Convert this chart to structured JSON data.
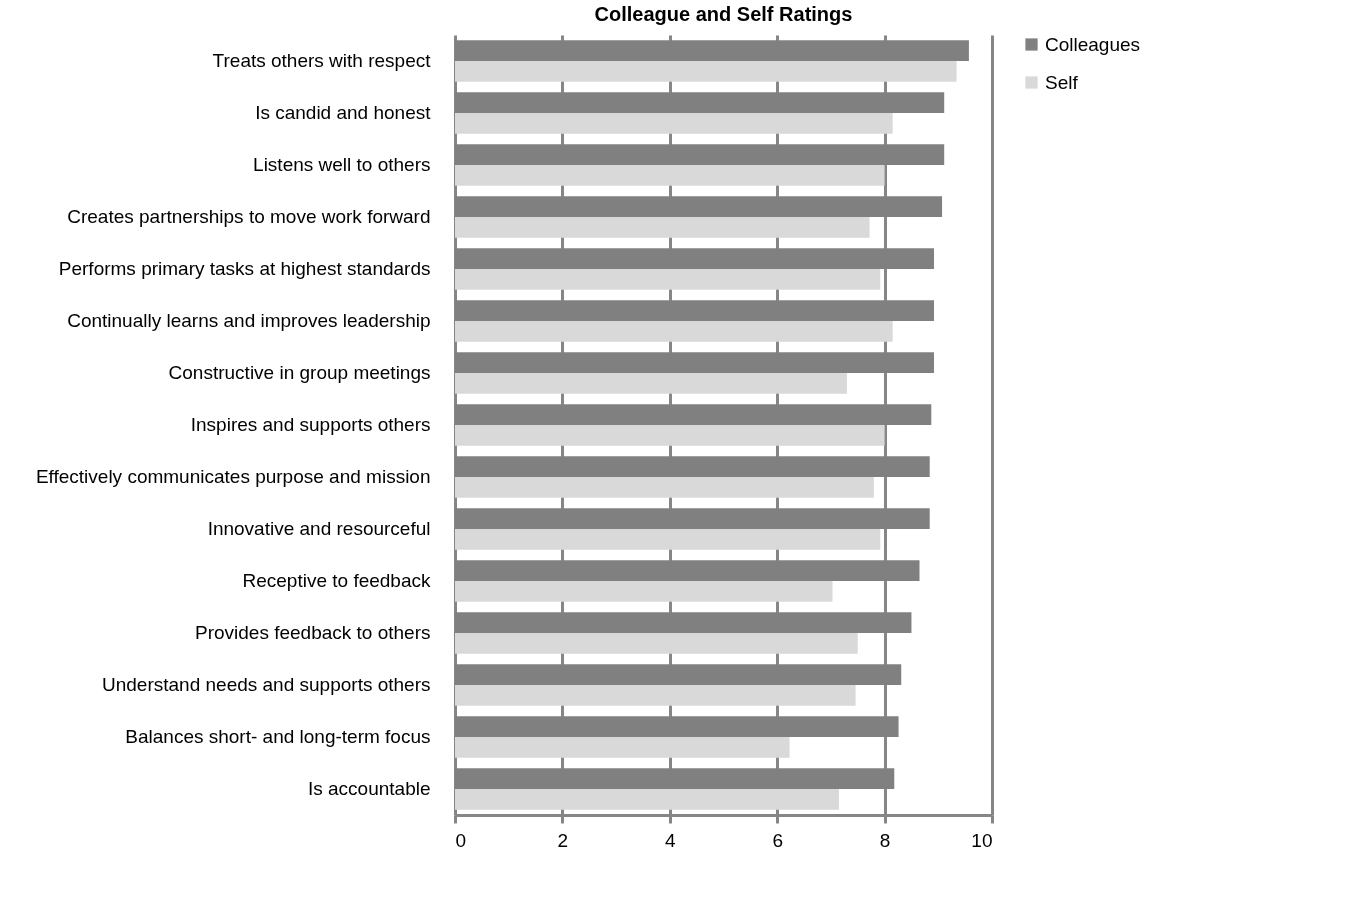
{
  "chart_data": {
    "type": "bar",
    "orientation": "horizontal",
    "title": "Colleague and Self Ratings",
    "categories": [
      "Treats others with respect",
      "Is candid and honest",
      "Listens well to others",
      "Creates partnerships to move work forward",
      "Performs primary tasks  at highest standards",
      "Continually learns and improves leadership",
      "Constructive in group meetings",
      "Inspires and supports others",
      "Effectively communicates  purpose and mission",
      "Innovative and resourceful",
      "Receptive to feedback",
      "Provides feedback to others",
      "Understand needs and supports others",
      "Balances short- and long-term focus",
      "Is accountable"
    ],
    "series": [
      {
        "name": "Colleagues",
        "color": "#808080",
        "values": [
          9.57,
          9.11,
          9.11,
          9.07,
          8.92,
          8.92,
          8.92,
          8.87,
          8.84,
          8.84,
          8.65,
          8.5,
          8.31,
          8.26,
          8.18
        ]
      },
      {
        "name": "Self",
        "color": "#d9d9d9",
        "values": [
          9.34,
          8.15,
          8.0,
          7.72,
          7.92,
          8.15,
          7.3,
          8.0,
          7.8,
          7.92,
          7.03,
          7.5,
          7.46,
          6.23,
          7.15
        ]
      }
    ],
    "xlim": [
      0,
      10
    ],
    "xticks": [
      0,
      2,
      4,
      6,
      8,
      10
    ],
    "grid": "x",
    "legend": "right"
  }
}
